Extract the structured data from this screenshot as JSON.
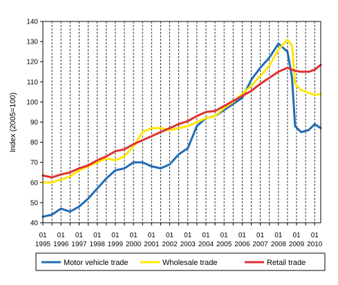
{
  "chart_data": {
    "type": "line",
    "title": "",
    "xlabel": "",
    "ylabel": "Index (2005=100)",
    "ylim": [
      40,
      140
    ],
    "yticks": [
      "40",
      "50",
      "60",
      "70",
      "80",
      "90",
      "100",
      "110",
      "120",
      "130",
      "140"
    ],
    "xticks": [
      {
        "month": "01",
        "year": "1995"
      },
      {
        "month": "01",
        "year": "1996"
      },
      {
        "month": "01",
        "year": "1997"
      },
      {
        "month": "01",
        "year": "1998"
      },
      {
        "month": "01",
        "year": "1999"
      },
      {
        "month": "01",
        "year": "2000"
      },
      {
        "month": "01",
        "year": "2001"
      },
      {
        "month": "01",
        "year": "2002"
      },
      {
        "month": "01",
        "year": "2003"
      },
      {
        "month": "01",
        "year": "2004"
      },
      {
        "month": "01",
        "year": "2005"
      },
      {
        "month": "01",
        "year": "2006"
      },
      {
        "month": "01",
        "year": "2007"
      },
      {
        "month": "01",
        "year": "2008"
      },
      {
        "month": "01",
        "year": "2009"
      },
      {
        "month": "01",
        "year": "2010"
      }
    ],
    "xlim": [
      "1995-01",
      "2010-05"
    ],
    "gridlines": "vertical dashed at each half-year",
    "legend": "bottom",
    "series": [
      {
        "name": "Motor vehicle trade",
        "color": "#1f6bb5",
        "points": [
          [
            "1995-01",
            43
          ],
          [
            "1995-07",
            44
          ],
          [
            "1996-01",
            47
          ],
          [
            "1996-07",
            45.5
          ],
          [
            "1997-01",
            48
          ],
          [
            "1997-07",
            52
          ],
          [
            "1998-01",
            57
          ],
          [
            "1998-07",
            62
          ],
          [
            "1999-01",
            66
          ],
          [
            "1999-07",
            67
          ],
          [
            "2000-01",
            70
          ],
          [
            "2000-07",
            70
          ],
          [
            "2001-01",
            68
          ],
          [
            "2001-07",
            67
          ],
          [
            "2002-01",
            69
          ],
          [
            "2002-07",
            74
          ],
          [
            "2003-01",
            77
          ],
          [
            "2003-07",
            88
          ],
          [
            "2004-01",
            92
          ],
          [
            "2004-07",
            93
          ],
          [
            "2005-01",
            96
          ],
          [
            "2005-07",
            99
          ],
          [
            "2006-01",
            102
          ],
          [
            "2006-07",
            111
          ],
          [
            "2007-01",
            117
          ],
          [
            "2007-07",
            122
          ],
          [
            "2008-01",
            129
          ],
          [
            "2008-07",
            125
          ],
          [
            "2008-10",
            112
          ],
          [
            "2008-12",
            88
          ],
          [
            "2009-04",
            85
          ],
          [
            "2009-09",
            86
          ],
          [
            "2010-01",
            89
          ],
          [
            "2010-05",
            87
          ]
        ]
      },
      {
        "name": "Wholesale trade",
        "color": "#ffe600",
        "points": [
          [
            "1995-01",
            60
          ],
          [
            "1995-07",
            60
          ],
          [
            "1996-01",
            61.5
          ],
          [
            "1996-07",
            63
          ],
          [
            "1997-01",
            66
          ],
          [
            "1997-07",
            68
          ],
          [
            "1998-01",
            70
          ],
          [
            "1998-07",
            72
          ],
          [
            "1999-01",
            71
          ],
          [
            "1999-07",
            73
          ],
          [
            "2000-01",
            78
          ],
          [
            "2000-07",
            85
          ],
          [
            "2001-01",
            87
          ],
          [
            "2001-07",
            87
          ],
          [
            "2002-01",
            86
          ],
          [
            "2002-07",
            87
          ],
          [
            "2003-01",
            88
          ],
          [
            "2003-07",
            90
          ],
          [
            "2004-01",
            92
          ],
          [
            "2004-07",
            93
          ],
          [
            "2005-01",
            97
          ],
          [
            "2005-07",
            100
          ],
          [
            "2006-01",
            104
          ],
          [
            "2006-07",
            108
          ],
          [
            "2007-01",
            113
          ],
          [
            "2007-07",
            118
          ],
          [
            "2008-01",
            126
          ],
          [
            "2008-07",
            131
          ],
          [
            "2008-10",
            128
          ],
          [
            "2008-12",
            109
          ],
          [
            "2009-04",
            106
          ],
          [
            "2009-09",
            104.5
          ],
          [
            "2010-01",
            103.5
          ],
          [
            "2010-05",
            104
          ]
        ]
      },
      {
        "name": "Retail trade",
        "color": "#e03030",
        "points": [
          [
            "1995-01",
            63.5
          ],
          [
            "1995-07",
            62.5
          ],
          [
            "1996-01",
            64
          ],
          [
            "1996-07",
            65
          ],
          [
            "1997-01",
            67
          ],
          [
            "1997-07",
            68.5
          ],
          [
            "1998-01",
            71
          ],
          [
            "1998-07",
            73
          ],
          [
            "1999-01",
            75.5
          ],
          [
            "1999-07",
            76.5
          ],
          [
            "2000-01",
            79
          ],
          [
            "2000-07",
            81
          ],
          [
            "2001-01",
            83
          ],
          [
            "2001-07",
            85
          ],
          [
            "2002-01",
            87
          ],
          [
            "2002-07",
            89
          ],
          [
            "2003-01",
            90.5
          ],
          [
            "2003-07",
            93
          ],
          [
            "2004-01",
            95
          ],
          [
            "2004-07",
            95.5
          ],
          [
            "2005-01",
            98
          ],
          [
            "2005-07",
            100.5
          ],
          [
            "2006-01",
            103
          ],
          [
            "2006-07",
            105.5
          ],
          [
            "2007-01",
            109
          ],
          [
            "2007-07",
            112
          ],
          [
            "2008-01",
            115
          ],
          [
            "2008-07",
            117
          ],
          [
            "2008-10",
            116
          ],
          [
            "2008-12",
            115.5
          ],
          [
            "2009-04",
            115
          ],
          [
            "2009-09",
            115
          ],
          [
            "2010-01",
            116
          ],
          [
            "2010-05",
            118.5
          ]
        ]
      }
    ]
  }
}
